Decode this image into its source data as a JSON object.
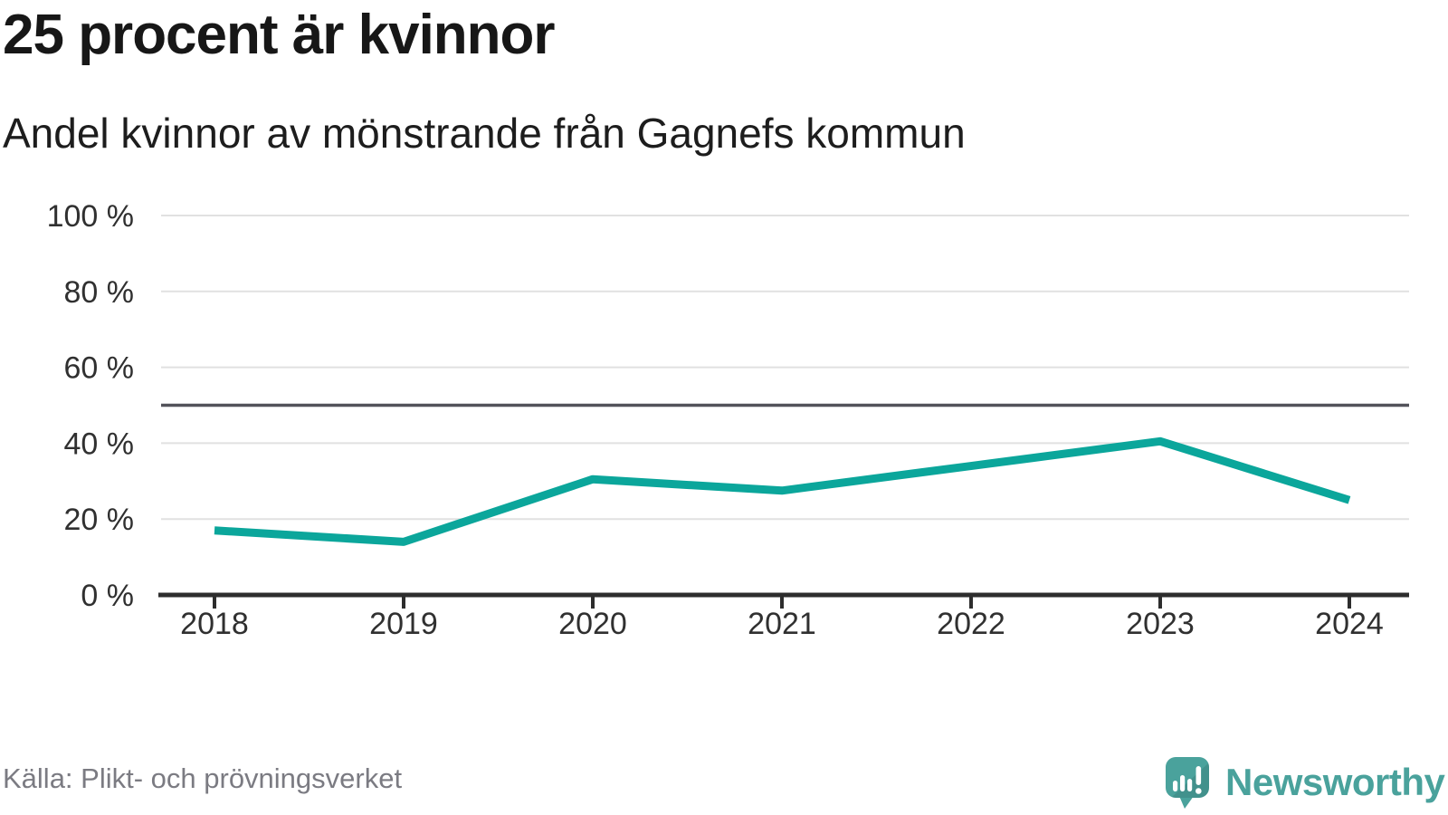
{
  "header": {
    "title": "25 procent är kvinnor",
    "subtitle": "Andel kvinnor av mönstrande från Gagnefs kommun"
  },
  "chart_data": {
    "type": "line",
    "title": "25 procent är kvinnor",
    "subtitle": "Andel kvinnor av mönstrande från Gagnefs kommun",
    "x": [
      2018,
      2019,
      2020,
      2021,
      2022,
      2023,
      2024
    ],
    "series": [
      {
        "name": "Andel kvinnor av mönstrande",
        "values": [
          17,
          14,
          30.5,
          27.5,
          34,
          40.5,
          25
        ]
      }
    ],
    "unit": "%",
    "ylim": [
      0,
      100
    ],
    "yticks": [
      0,
      20,
      40,
      60,
      80,
      100
    ],
    "ytick_suffix": " %",
    "reference_line": 50,
    "grid": "horizontal",
    "legend": "none",
    "xlabel": "",
    "ylabel": ""
  },
  "footer": {
    "source": "Källa: Plikt- och prövningsverket",
    "brand": "Newsworthy",
    "brand_icon": "newsworthy-speech-bubble-chart-icon"
  },
  "colors": {
    "series_line": "#0ba69b",
    "reference_line": "#53535a",
    "gridline": "#e1e1e1",
    "axis": "#2d2d2d",
    "tick_label": "#303030",
    "title_text": "#171717",
    "muted_text": "#7b7b82",
    "brand_teal": "#4aa29c"
  }
}
